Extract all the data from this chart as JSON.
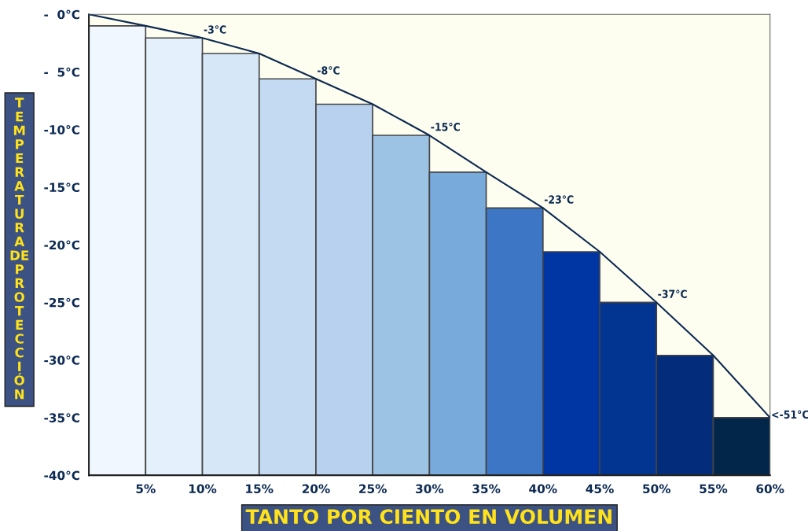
{
  "chart_data": {
    "type": "bar",
    "xlabel": "TANTO POR CIENTO EN VOLUMEN",
    "ylabel": "TEMPERATURA DE PROTECCIÓN",
    "x": [
      2.5,
      7.5,
      12.5,
      17.5,
      22.5,
      27.5,
      32.5,
      37.5,
      42.5,
      47.5,
      52.5,
      57.5
    ],
    "base": [
      -40,
      -40,
      -40,
      -40,
      -40,
      -40,
      -40,
      -40,
      -40,
      -40,
      -40,
      -40
    ],
    "values": [
      39.0,
      37.95,
      36.6,
      34.4,
      32.2,
      29.5,
      26.3,
      23.2,
      19.4,
      15.0,
      10.4,
      5.0
    ],
    "colors": [
      "#f0f7fe",
      "#e4f0fc",
      "#d6e8f8",
      "#c4daf2",
      "#b7d1ee",
      "#9dc3e4",
      "#78aadc",
      "#3c76c4",
      "#0036a4",
      "#023591",
      "#032d7a",
      "#02264a"
    ],
    "series": [
      {
        "type": "line",
        "color": "#0d2a52",
        "x": [
          0,
          5,
          10,
          15,
          20,
          25,
          30,
          35,
          40,
          45,
          50,
          55,
          60
        ],
        "values": [
          0,
          -1.0,
          -2.05,
          -3.4,
          -5.6,
          -7.8,
          -10.5,
          -13.7,
          -16.8,
          -20.6,
          -25.0,
          -29.6,
          -35.0
        ]
      }
    ],
    "annotations": [
      {
        "text": "-3°C",
        "x": 10,
        "y": -2.05
      },
      {
        "text": "-8°C",
        "x": 20,
        "y": -5.6
      },
      {
        "text": "-15°C",
        "x": 30,
        "y": -10.5
      },
      {
        "text": "-23°C",
        "x": 40,
        "y": -16.8
      },
      {
        "text": "-37°C",
        "x": 50,
        "y": -25.0
      },
      {
        "text": "<-51°C",
        "x": 60,
        "y": -35.0
      }
    ],
    "xlim": [
      0,
      60
    ],
    "ylim": [
      -40,
      0
    ],
    "xticks": [
      {
        "value": 5,
        "label": "5%"
      },
      {
        "value": 10,
        "label": "10%"
      },
      {
        "value": 15,
        "label": "15%"
      },
      {
        "value": 20,
        "label": "20%"
      },
      {
        "value": 25,
        "label": "25%"
      },
      {
        "value": 30,
        "label": "30%"
      },
      {
        "value": 35,
        "label": "35%"
      },
      {
        "value": 40,
        "label": "40%"
      },
      {
        "value": 45,
        "label": "45%"
      },
      {
        "value": 50,
        "label": "50%"
      },
      {
        "value": 55,
        "label": "55%"
      },
      {
        "value": 60,
        "label": "60%"
      }
    ],
    "yticks": [
      {
        "value": 0,
        "label": "-  0°C"
      },
      {
        "value": -5,
        "label": "-  5°C"
      },
      {
        "value": -10,
        "label": "-10°C"
      },
      {
        "value": -15,
        "label": "-15°C"
      },
      {
        "value": -20,
        "label": "-20°C"
      },
      {
        "value": -25,
        "label": "-25°C"
      },
      {
        "value": -30,
        "label": "-30°C"
      },
      {
        "value": -35,
        "label": "-35°C"
      },
      {
        "value": -40,
        "label": "-40°C"
      }
    ],
    "marker": "none",
    "line_style": "solid"
  }
}
